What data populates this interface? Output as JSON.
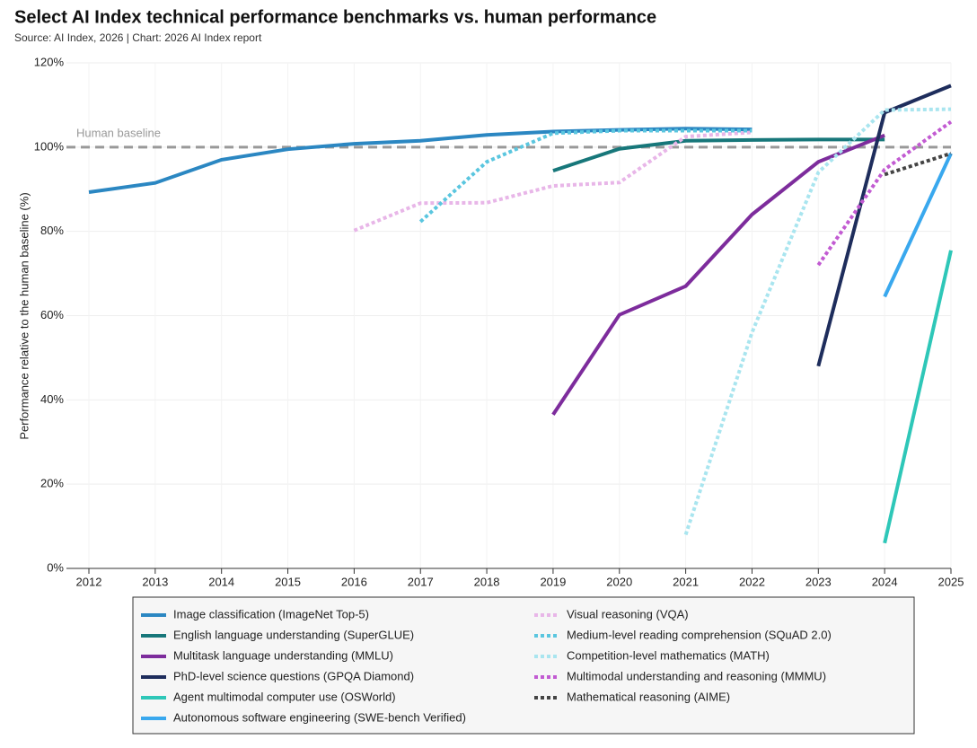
{
  "chart_data": {
    "type": "line",
    "title": "Select AI Index technical performance benchmarks vs. human performance",
    "subtitle": "Source: AI Index, 2026 | Chart: 2026 AI Index report",
    "y_label": "Performance relative to the human baseline (%)",
    "xlim": [
      2012,
      2025
    ],
    "xticks": [
      2012,
      2013,
      2014,
      2015,
      2016,
      2017,
      2018,
      2019,
      2020,
      2021,
      2022,
      2023,
      2024,
      2025
    ],
    "ylim": [
      0,
      120
    ],
    "yticks": [
      {
        "value": 0,
        "label": "0%"
      },
      {
        "value": 20,
        "label": "20%"
      },
      {
        "value": 40,
        "label": "40%"
      },
      {
        "value": 60,
        "label": "60%"
      },
      {
        "value": 80,
        "label": "80%"
      },
      {
        "value": 100,
        "label": "100%"
      },
      {
        "value": 120,
        "label": "120%"
      }
    ],
    "grid": true,
    "baseline": {
      "value": 100,
      "label": "Human baseline",
      "color": "#999999"
    },
    "legend": "bottom",
    "series": [
      {
        "name": "Image classification (ImageNet Top-5)",
        "color": "#2b87c2",
        "style": "solid",
        "x": [
          2012,
          2013,
          2014,
          2015,
          2016,
          2017,
          2018,
          2019,
          2020,
          2021,
          2022
        ],
        "values": [
          89.3,
          91.5,
          97,
          99.5,
          100.8,
          101.5,
          102.9,
          103.7,
          104.1,
          104.4,
          104.2
        ]
      },
      {
        "name": "English language understanding (SuperGLUE)",
        "color": "#17777a",
        "style": "solid",
        "x": [
          2019,
          2020,
          2021,
          2022,
          2023,
          2024
        ],
        "values": [
          94.4,
          99.6,
          101.5,
          101.7,
          101.8,
          101.8
        ]
      },
      {
        "name": "Multitask language understanding (MMLU)",
        "color": "#7d2c9c",
        "style": "solid",
        "x": [
          2019,
          2020,
          2021,
          2022,
          2023,
          2024
        ],
        "values": [
          36.5,
          60.2,
          67,
          84,
          96.5,
          102.8
        ]
      },
      {
        "name": "PhD-level science questions (GPQA Diamond)",
        "color": "#1e2d5c",
        "style": "solid",
        "x": [
          2023,
          2024,
          2025
        ],
        "values": [
          48,
          108.2,
          114.6
        ]
      },
      {
        "name": "Agent multimodal computer use (OSWorld)",
        "color": "#2ec7b8",
        "style": "solid",
        "x": [
          2024,
          2025
        ],
        "values": [
          6,
          75.5
        ]
      },
      {
        "name": "Autonomous software engineering (SWE-bench Verified)",
        "color": "#39a8ee",
        "style": "solid",
        "x": [
          2024,
          2025
        ],
        "values": [
          64.5,
          98.5
        ]
      },
      {
        "name": "Visual reasoning (VQA)",
        "color": "#e8b6e8",
        "style": "dotted",
        "x": [
          2016,
          2017,
          2018,
          2019,
          2020,
          2021,
          2022
        ],
        "values": [
          80.2,
          86.7,
          86.8,
          90.8,
          91.6,
          102.5,
          103.5
        ]
      },
      {
        "name": "Medium-level reading comprehension (SQuAD 2.0)",
        "color": "#5ac6df",
        "style": "dotted",
        "x": [
          2017,
          2018,
          2019,
          2020,
          2021,
          2022
        ],
        "values": [
          82.3,
          96.5,
          103.3,
          103.9,
          103.9,
          103.9
        ]
      },
      {
        "name": "Competition-level mathematics (MATH)",
        "color": "#a9e5ef",
        "style": "dotted",
        "x": [
          2021,
          2022,
          2023,
          2024,
          2025
        ],
        "values": [
          8,
          56,
          94,
          108.8,
          109
        ]
      },
      {
        "name": "Multimodal understanding and reasoning (MMMU)",
        "color": "#c25bd2",
        "style": "dotted",
        "x": [
          2023,
          2024,
          2025
        ],
        "values": [
          72,
          94.7,
          106
        ]
      },
      {
        "name": "Mathematical reasoning (AIME)",
        "color": "#444444",
        "style": "dotted",
        "x": [
          2024,
          2025
        ],
        "values": [
          93.5,
          98.5
        ]
      }
    ]
  }
}
